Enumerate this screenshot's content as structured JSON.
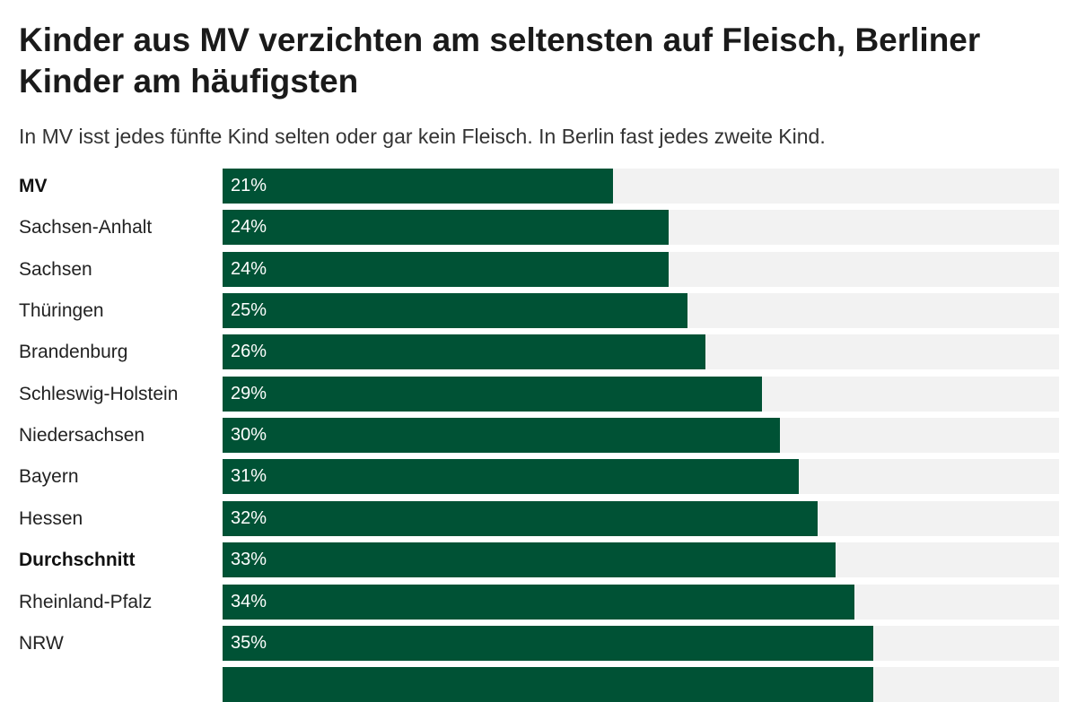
{
  "chart_data": {
    "type": "bar",
    "orientation": "horizontal",
    "title": "Kinder aus MV verzichten am seltensten auf Fleisch, Berliner Kinder am häufigsten",
    "subtitle": "In MV isst jedes fünfte Kind selten oder gar kein Fleisch. In Berlin fast jedes zweite Kind.",
    "xlim": [
      0,
      45
    ],
    "categories": [
      "MV",
      "Sachsen-Anhalt",
      "Sachsen",
      "Thüringen",
      "Brandenburg",
      "Schleswig-Holstein",
      "Niedersachsen",
      "Bayern",
      "Hessen",
      "Durchschnitt",
      "Rheinland-Pfalz",
      "NRW",
      ""
    ],
    "bold_categories": [
      "MV",
      "Durchschnitt"
    ],
    "values": [
      21,
      24,
      24,
      25,
      26,
      29,
      30,
      31,
      32,
      33,
      34,
      35,
      35
    ],
    "value_labels": [
      "21%",
      "24%",
      "24%",
      "25%",
      "26%",
      "29%",
      "30%",
      "31%",
      "32%",
      "33%",
      "34%",
      "35%",
      ""
    ],
    "colors": {
      "bar": "#005235",
      "track": "#f2f2f2",
      "value_text": "#ffffff"
    }
  }
}
